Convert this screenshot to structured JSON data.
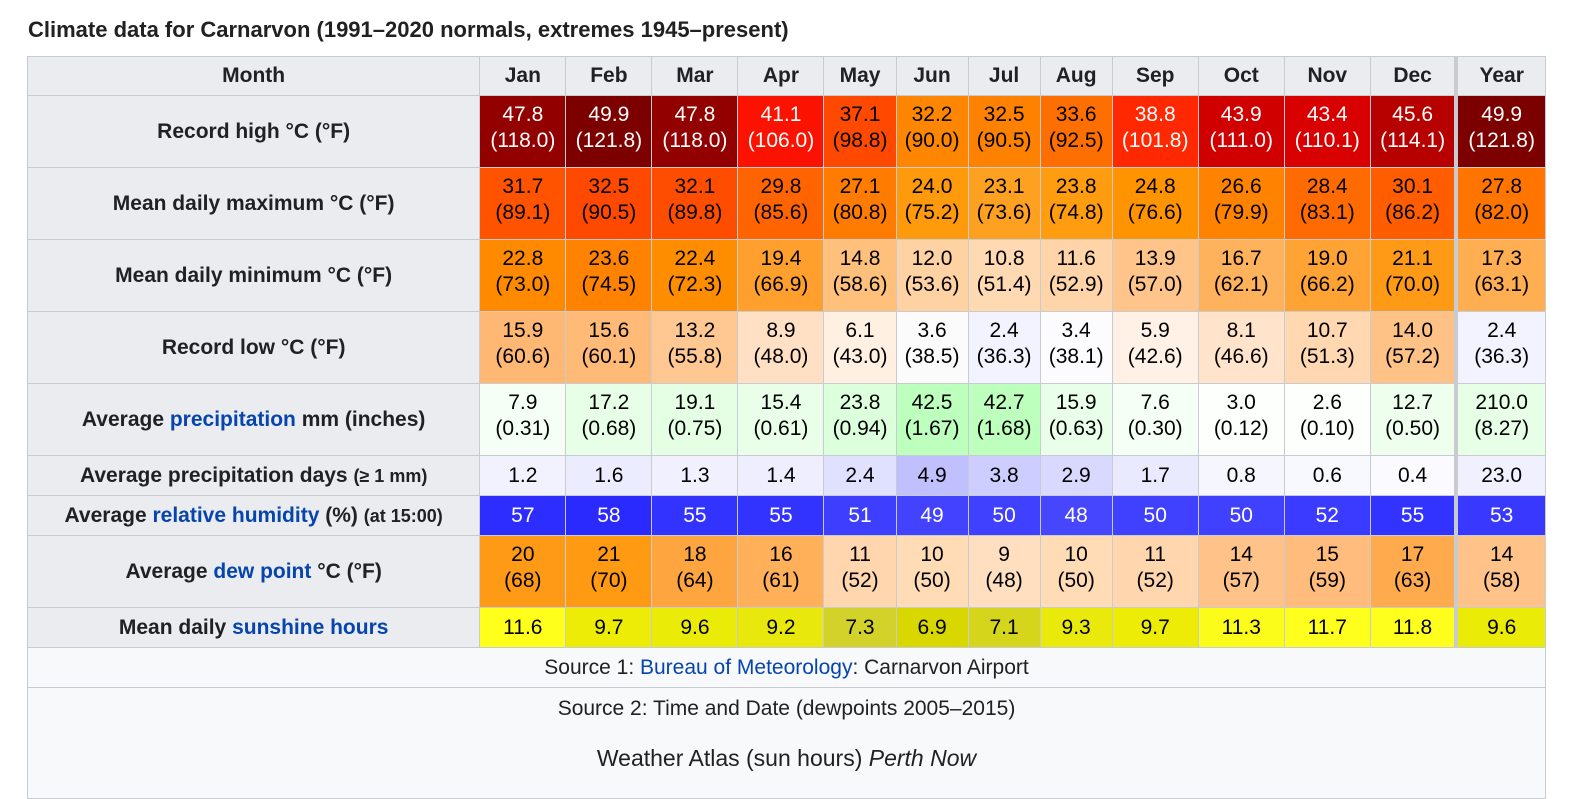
{
  "caption": "Climate data for Carnarvon (1991–2020 normals, extremes 1945–present)",
  "header": {
    "month_label": "Month",
    "months": [
      "Jan",
      "Feb",
      "Mar",
      "Apr",
      "May",
      "Jun",
      "Jul",
      "Aug",
      "Sep",
      "Oct",
      "Nov",
      "Dec"
    ],
    "year_label": "Year"
  },
  "rows": [
    {
      "label_pre": "Record high °C (°F)",
      "label_link": "",
      "label_post": "",
      "label_small": "",
      "double": true,
      "values": [
        [
          "47.8",
          "(118.0)"
        ],
        [
          "49.9",
          "(121.8)"
        ],
        [
          "47.8",
          "(118.0)"
        ],
        [
          "41.1",
          "(106.0)"
        ],
        [
          "37.1",
          "(98.8)"
        ],
        [
          "32.2",
          "(90.0)"
        ],
        [
          "32.5",
          "(90.5)"
        ],
        [
          "33.6",
          "(92.5)"
        ],
        [
          "38.8",
          "(101.8)"
        ],
        [
          "43.9",
          "(111.0)"
        ],
        [
          "43.4",
          "(110.1)"
        ],
        [
          "45.6",
          "(114.1)"
        ],
        [
          "49.9",
          "(121.8)"
        ]
      ],
      "colors": [
        "#930000",
        "#7d0000",
        "#930000",
        "#fc1200",
        "#ff4800",
        "#ff8600",
        "#ff8100",
        "#ff6f00",
        "#ff2800",
        "#d10000",
        "#d80000",
        "#b70000",
        "#7d0000"
      ],
      "text_colors": [
        "#ffffff",
        "#ffffff",
        "#ffffff",
        "#ffffff",
        "#000000",
        "#000000",
        "#000000",
        "#000000",
        "#ffffff",
        "#ffffff",
        "#ffffff",
        "#ffffff",
        "#ffffff"
      ]
    },
    {
      "label_pre": "Mean daily maximum °C (°F)",
      "label_link": "",
      "label_post": "",
      "label_small": "",
      "double": true,
      "values": [
        [
          "31.7",
          "(89.1)"
        ],
        [
          "32.5",
          "(90.5)"
        ],
        [
          "32.1",
          "(89.8)"
        ],
        [
          "29.8",
          "(85.6)"
        ],
        [
          "27.1",
          "(80.8)"
        ],
        [
          "24.0",
          "(75.2)"
        ],
        [
          "23.1",
          "(73.6)"
        ],
        [
          "23.8",
          "(74.8)"
        ],
        [
          "24.8",
          "(76.6)"
        ],
        [
          "26.6",
          "(79.9)"
        ],
        [
          "28.4",
          "(83.1)"
        ],
        [
          "30.1",
          "(86.2)"
        ],
        [
          "27.8",
          "(82.0)"
        ]
      ],
      "colors": [
        "#ff5300",
        "#ff4800",
        "#ff4d00",
        "#ff6400",
        "#ff7c00",
        "#ff9a0c",
        "#ffa120",
        "#ff9c10",
        "#ff9300",
        "#ff8200",
        "#ff6b00",
        "#ff5d00",
        "#ff7500"
      ],
      "text_colors": [
        "#000000",
        "#000000",
        "#000000",
        "#000000",
        "#000000",
        "#000000",
        "#000000",
        "#000000",
        "#000000",
        "#000000",
        "#000000",
        "#000000",
        "#000000"
      ]
    },
    {
      "label_pre": "Mean daily minimum °C (°F)",
      "label_link": "",
      "label_post": "",
      "label_small": "",
      "double": true,
      "values": [
        [
          "22.8",
          "(73.0)"
        ],
        [
          "23.6",
          "(74.5)"
        ],
        [
          "22.4",
          "(72.3)"
        ],
        [
          "19.4",
          "(66.9)"
        ],
        [
          "14.8",
          "(58.6)"
        ],
        [
          "12.0",
          "(53.6)"
        ],
        [
          "10.8",
          "(51.4)"
        ],
        [
          "11.6",
          "(52.9)"
        ],
        [
          "13.9",
          "(57.0)"
        ],
        [
          "16.7",
          "(62.1)"
        ],
        [
          "19.0",
          "(66.2)"
        ],
        [
          "21.1",
          "(70.0)"
        ],
        [
          "17.3",
          "(63.1)"
        ]
      ],
      "colors": [
        "#ff8a00",
        "#ff8300",
        "#ff8d00",
        "#ffa02e",
        "#ffc07c",
        "#ffd2a3",
        "#ffd9b2",
        "#ffd4a8",
        "#ffc489",
        "#ffb25c",
        "#ffa334",
        "#ff9a16",
        "#ffae52"
      ],
      "text_colors": [
        "#000000",
        "#000000",
        "#000000",
        "#000000",
        "#000000",
        "#000000",
        "#000000",
        "#000000",
        "#000000",
        "#000000",
        "#000000",
        "#000000",
        "#000000"
      ]
    },
    {
      "label_pre": "Record low °C (°F)",
      "label_link": "",
      "label_post": "",
      "label_small": "",
      "double": true,
      "values": [
        [
          "15.9",
          "(60.6)"
        ],
        [
          "15.6",
          "(60.1)"
        ],
        [
          "13.2",
          "(55.8)"
        ],
        [
          "8.9",
          "(48.0)"
        ],
        [
          "6.1",
          "(43.0)"
        ],
        [
          "3.6",
          "(38.5)"
        ],
        [
          "2.4",
          "(36.3)"
        ],
        [
          "3.4",
          "(38.1)"
        ],
        [
          "5.9",
          "(42.6)"
        ],
        [
          "8.1",
          "(46.6)"
        ],
        [
          "10.7",
          "(51.3)"
        ],
        [
          "14.0",
          "(57.2)"
        ],
        [
          "2.4",
          "(36.3)"
        ]
      ],
      "colors": [
        "#ffb873",
        "#ffba78",
        "#ffc791",
        "#ffe0c4",
        "#fff0e2",
        "#fbfbfb",
        "#f3f3ff",
        "#fcfcff",
        "#fff1e5",
        "#ffe3cb",
        "#ffd7b1",
        "#ffc286",
        "#f3f3ff"
      ],
      "text_colors": [
        "#000000",
        "#000000",
        "#000000",
        "#000000",
        "#000000",
        "#000000",
        "#000000",
        "#000000",
        "#000000",
        "#000000",
        "#000000",
        "#000000",
        "#000000"
      ]
    },
    {
      "label_pre": "Average ",
      "label_link": "precipitation",
      "label_post": " mm (inches)",
      "label_small": "",
      "double": true,
      "values": [
        [
          "7.9",
          "(0.31)"
        ],
        [
          "17.2",
          "(0.68)"
        ],
        [
          "19.1",
          "(0.75)"
        ],
        [
          "15.4",
          "(0.61)"
        ],
        [
          "23.8",
          "(0.94)"
        ],
        [
          "42.5",
          "(1.67)"
        ],
        [
          "42.7",
          "(1.68)"
        ],
        [
          "15.9",
          "(0.63)"
        ],
        [
          "7.6",
          "(0.30)"
        ],
        [
          "3.0",
          "(0.12)"
        ],
        [
          "2.6",
          "(0.10)"
        ],
        [
          "12.7",
          "(0.50)"
        ],
        [
          "210.0",
          "(8.27)"
        ]
      ],
      "colors": [
        "#f6fff6",
        "#e7ffe7",
        "#e4ffe4",
        "#eaffea",
        "#dcffdc",
        "#bdffbd",
        "#bdffbd",
        "#e9ffe9",
        "#f6fff6",
        "#fcfffc",
        "#fcfffc",
        "#eeffee",
        "#e6ffe6"
      ],
      "text_colors": [
        "#000000",
        "#000000",
        "#000000",
        "#000000",
        "#000000",
        "#000000",
        "#000000",
        "#000000",
        "#000000",
        "#000000",
        "#000000",
        "#000000",
        "#000000"
      ]
    },
    {
      "label_pre": "Average precipitation days ",
      "label_link": "",
      "label_post": "",
      "label_small": "(≥ 1 mm)",
      "double": false,
      "values": [
        [
          "1.2",
          ""
        ],
        [
          "1.6",
          ""
        ],
        [
          "1.3",
          ""
        ],
        [
          "1.4",
          ""
        ],
        [
          "2.4",
          ""
        ],
        [
          "4.9",
          ""
        ],
        [
          "3.8",
          ""
        ],
        [
          "2.9",
          ""
        ],
        [
          "1.7",
          ""
        ],
        [
          "0.8",
          ""
        ],
        [
          "0.6",
          ""
        ],
        [
          "0.4",
          ""
        ],
        [
          "23.0",
          ""
        ]
      ],
      "colors": [
        "#f2f2ff",
        "#ececff",
        "#f0f0ff",
        "#eeeeff",
        "#e0e0ff",
        "#c0c0ff",
        "#cdcdff",
        "#d9d9ff",
        "#eaeaff",
        "#f6f6ff",
        "#f8f8ff",
        "#fbfbff",
        "#f0f0ff"
      ],
      "text_colors": [
        "#000000",
        "#000000",
        "#000000",
        "#000000",
        "#000000",
        "#000000",
        "#000000",
        "#000000",
        "#000000",
        "#000000",
        "#000000",
        "#000000",
        "#000000"
      ]
    },
    {
      "label_pre": "Average ",
      "label_link": "relative humidity",
      "label_post": " (%) ",
      "label_small": "(at 15:00)",
      "double": false,
      "values": [
        [
          "57",
          ""
        ],
        [
          "58",
          ""
        ],
        [
          "55",
          ""
        ],
        [
          "55",
          ""
        ],
        [
          "51",
          ""
        ],
        [
          "49",
          ""
        ],
        [
          "50",
          ""
        ],
        [
          "48",
          ""
        ],
        [
          "50",
          ""
        ],
        [
          "50",
          ""
        ],
        [
          "52",
          ""
        ],
        [
          "55",
          ""
        ],
        [
          "53",
          ""
        ]
      ],
      "colors": [
        "#2d2dff",
        "#2a2aff",
        "#3333ff",
        "#3333ff",
        "#3e3eff",
        "#4343ff",
        "#4040ff",
        "#4646ff",
        "#4040ff",
        "#4040ff",
        "#3b3bff",
        "#3333ff",
        "#3838ff"
      ],
      "text_colors": [
        "#ffffff",
        "#ffffff",
        "#ffffff",
        "#ffffff",
        "#ffffff",
        "#ffffff",
        "#ffffff",
        "#ffffff",
        "#ffffff",
        "#ffffff",
        "#ffffff",
        "#ffffff",
        "#ffffff"
      ]
    },
    {
      "label_pre": "Average ",
      "label_link": "dew point",
      "label_post": " °C (°F)",
      "label_small": "",
      "double": true,
      "values": [
        [
          "20",
          "(68)"
        ],
        [
          "21",
          "(70)"
        ],
        [
          "18",
          "(64)"
        ],
        [
          "16",
          "(61)"
        ],
        [
          "11",
          "(52)"
        ],
        [
          "10",
          "(50)"
        ],
        [
          "9",
          "(48)"
        ],
        [
          "10",
          "(50)"
        ],
        [
          "11",
          "(52)"
        ],
        [
          "14",
          "(57)"
        ],
        [
          "15",
          "(59)"
        ],
        [
          "17",
          "(63)"
        ],
        [
          "14",
          "(58)"
        ]
      ],
      "colors": [
        "#ff9a17",
        "#ff9a12",
        "#ffa540",
        "#ffb058",
        "#ffd6ad",
        "#ffdbb6",
        "#ffdfc0",
        "#ffdbb6",
        "#ffd6ad",
        "#ffc38a",
        "#ffbc7c",
        "#ffaa4d",
        "#ffc38a"
      ],
      "text_colors": [
        "#000000",
        "#000000",
        "#000000",
        "#000000",
        "#000000",
        "#000000",
        "#000000",
        "#000000",
        "#000000",
        "#000000",
        "#000000",
        "#000000",
        "#000000"
      ]
    },
    {
      "label_pre": "Mean daily ",
      "label_link": "sunshine hours",
      "label_post": "",
      "label_small": "",
      "double": false,
      "values": [
        [
          "11.6",
          ""
        ],
        [
          "9.7",
          ""
        ],
        [
          "9.6",
          ""
        ],
        [
          "9.2",
          ""
        ],
        [
          "7.3",
          ""
        ],
        [
          "6.9",
          ""
        ],
        [
          "7.1",
          ""
        ],
        [
          "9.3",
          ""
        ],
        [
          "9.7",
          ""
        ],
        [
          "11.3",
          ""
        ],
        [
          "11.7",
          ""
        ],
        [
          "11.8",
          ""
        ],
        [
          "9.6",
          ""
        ]
      ],
      "colors": [
        "#ffff1c",
        "#ecec06",
        "#ebeb08",
        "#e8e80c",
        "#d2d22a",
        "#d8d800",
        "#d5d51c",
        "#e9e90c",
        "#ecec06",
        "#fcfc1a",
        "#ffff1d",
        "#ffff1e",
        "#ebeb08"
      ],
      "text_colors": [
        "#000000",
        "#000000",
        "#000000",
        "#000000",
        "#000000",
        "#000000",
        "#000000",
        "#000000",
        "#000000",
        "#000000",
        "#000000",
        "#000000",
        "#000000"
      ]
    }
  ],
  "source1": {
    "prefix": "Source 1: ",
    "link": "Bureau of Meteorology",
    "suffix": ": Carnarvon Airport"
  },
  "source2": {
    "line1": "Source 2: Time and Date (dewpoints 2005–2015)",
    "line2_plain": "Weather Atlas (sun hours) ",
    "line2_italic": "Perth Now"
  }
}
